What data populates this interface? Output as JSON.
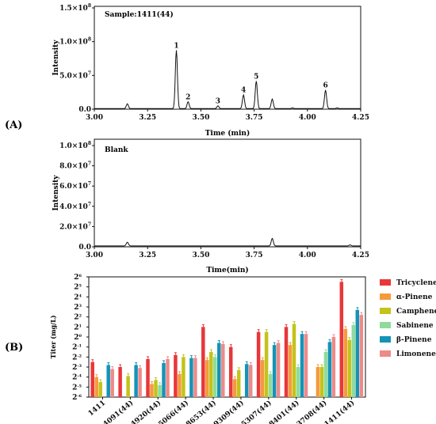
{
  "chart_data": [
    {
      "type": "line",
      "panel": "(A)",
      "title": "Sample:1411(44)",
      "xlabel": "Time (min)",
      "ylabel": "Intensity",
      "xlim": [
        3.0,
        4.25
      ],
      "ylim": [
        0,
        150000000
      ],
      "xticks": [
        "3.00",
        "3.25",
        "3.50",
        "3.75",
        "4.00",
        "4.25"
      ],
      "yticks": [
        {
          "base": "0.0",
          "exp": ""
        },
        {
          "base": "5.0×10",
          "exp": "7"
        },
        {
          "base": "1.0×10",
          "exp": "8"
        },
        {
          "base": "1.5×10",
          "exp": "8"
        }
      ],
      "peaks": [
        {
          "label": "",
          "x": 3.155,
          "y": 7000000
        },
        {
          "label": "1",
          "x": 3.385,
          "y": 85000000
        },
        {
          "label": "2",
          "x": 3.44,
          "y": 10000000
        },
        {
          "label": "3",
          "x": 3.58,
          "y": 4000000
        },
        {
          "label": "4",
          "x": 3.7,
          "y": 20000000
        },
        {
          "label": "5",
          "x": 3.76,
          "y": 40000000
        },
        {
          "label": "",
          "x": 3.835,
          "y": 14000000
        },
        {
          "label": "",
          "x": 3.93,
          "y": 1000000
        },
        {
          "label": "6",
          "x": 4.085,
          "y": 27000000
        },
        {
          "label": "",
          "x": 4.14,
          "y": 1000000
        }
      ]
    },
    {
      "type": "line",
      "title": "Blank",
      "xlabel": "Time(min)",
      "ylabel": "Intensity",
      "xlim": [
        3.0,
        4.25
      ],
      "ylim": [
        0,
        100000000
      ],
      "xticks": [
        "3.00",
        "3.25",
        "3.50",
        "3.75",
        "4.00",
        "4.25"
      ],
      "yticks": [
        {
          "base": "0.0",
          "exp": ""
        },
        {
          "base": "2.0×10",
          "exp": "7"
        },
        {
          "base": "4.0×10",
          "exp": "7"
        },
        {
          "base": "6.0×10",
          "exp": "7"
        },
        {
          "base": "8.0×10",
          "exp": "7"
        },
        {
          "base": "1.0×10",
          "exp": "8"
        }
      ],
      "peaks": [
        {
          "label": "",
          "x": 3.155,
          "y": 3500000
        },
        {
          "label": "",
          "x": 3.835,
          "y": 7000000
        },
        {
          "label": "",
          "x": 4.2,
          "y": 1000000
        }
      ]
    },
    {
      "type": "bar",
      "panel": "(B)",
      "ylabel": "Titer (mg/L)",
      "yscale": "log2",
      "ylim_log2": [
        -6,
        6
      ],
      "yticks_exp": [
        "-6",
        "-5",
        "-4",
        "-3",
        "-2",
        "-1",
        "0",
        "1",
        "2",
        "3",
        "4",
        "5",
        "6"
      ],
      "ytick_base": "2",
      "categories": [
        "1411",
        "4091(44)",
        "4920(44)",
        "5066(44)",
        "8653(44)",
        "9309(44)",
        "5307(44)",
        "8401(44)",
        "3708(44)",
        "1411(44)"
      ],
      "series": [
        {
          "name": "Tricyclene",
          "color": "#e8373a",
          "log2_values": [
            -2.5,
            -3.0,
            -2.2,
            -1.8,
            1.0,
            -1.0,
            0.5,
            1.0,
            null,
            5.5
          ]
        },
        {
          "name": "α-Pinene",
          "color": "#f59a3c",
          "log2_values": [
            -4.0,
            null,
            -4.7,
            -3.7,
            -2.3,
            -4.2,
            -2.3,
            -0.8,
            -3.0,
            0.8
          ]
        },
        {
          "name": "Camphene",
          "color": "#c3c31a",
          "log2_values": [
            -4.5,
            -3.9,
            -4.3,
            -2.0,
            -1.5,
            -3.3,
            0.5,
            1.3,
            -3.0,
            -0.3
          ]
        },
        {
          "name": "Sabinene",
          "color": "#8fdc9a",
          "log2_values": [
            null,
            null,
            -4.8,
            null,
            -2.0,
            null,
            -3.7,
            -3.0,
            -1.5,
            1.2
          ]
        },
        {
          "name": "β-Pinene",
          "color": "#1593b5",
          "log2_values": [
            -2.8,
            -2.8,
            -2.6,
            -2.1,
            -0.6,
            -2.7,
            -0.8,
            0.3,
            -0.5,
            2.7
          ]
        },
        {
          "name": "Limonene",
          "color": "#ee8a8a",
          "log2_values": [
            -3.2,
            -3.1,
            -2.2,
            -2.1,
            -0.7,
            -2.8,
            -0.6,
            0.3,
            0.0,
            2.2
          ]
        }
      ],
      "legend_position": "right"
    }
  ]
}
